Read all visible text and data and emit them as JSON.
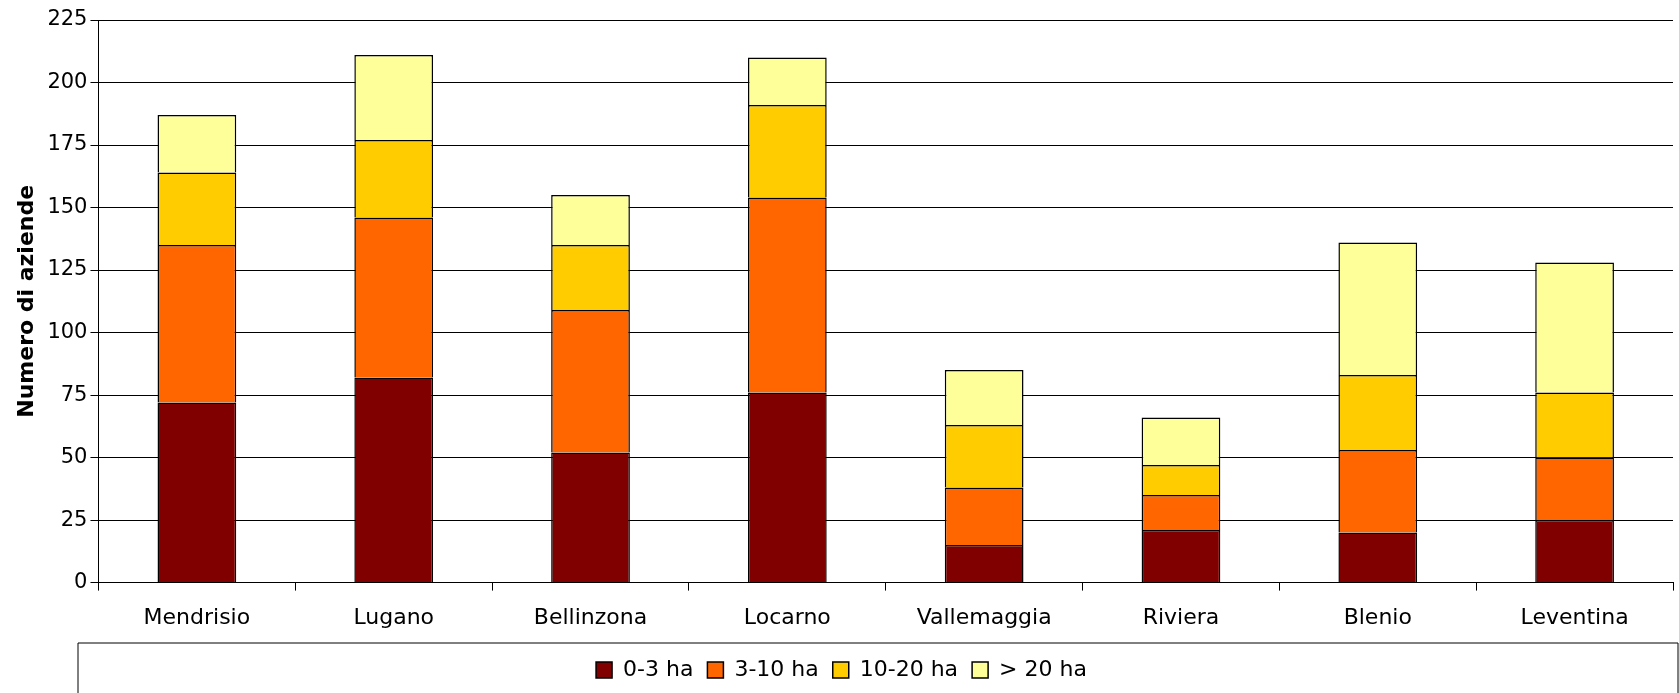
{
  "chart_data": {
    "type": "bar",
    "stacked": true,
    "ylabel": "Numero di aziende",
    "categories": [
      "Mendrisio",
      "Lugano",
      "Bellinzona",
      "Locarno",
      "Vallemaggia",
      "Riviera",
      "Blenio",
      "Leventina"
    ],
    "series": [
      {
        "name": "0-3 ha",
        "color": "#800000",
        "values": [
          72,
          82,
          52,
          76,
          15,
          21,
          20,
          25
        ]
      },
      {
        "name": "3-10 ha",
        "color": "#ff6600",
        "values": [
          63,
          64,
          57,
          78,
          23,
          14,
          33,
          25
        ]
      },
      {
        "name": "10-20 ha",
        "color": "#ffcc00",
        "values": [
          29,
          31,
          26,
          37,
          25,
          12,
          30,
          26
        ]
      },
      {
        "name": "> 20 ha",
        "color": "#ffff99",
        "values": [
          23,
          34,
          20,
          19,
          22,
          19,
          53,
          52
        ]
      }
    ],
    "ylim": [
      0,
      225
    ],
    "yticks": [
      0,
      25,
      50,
      75,
      100,
      125,
      150,
      175,
      200,
      225
    ],
    "grid": "y",
    "legend": "bottom"
  }
}
